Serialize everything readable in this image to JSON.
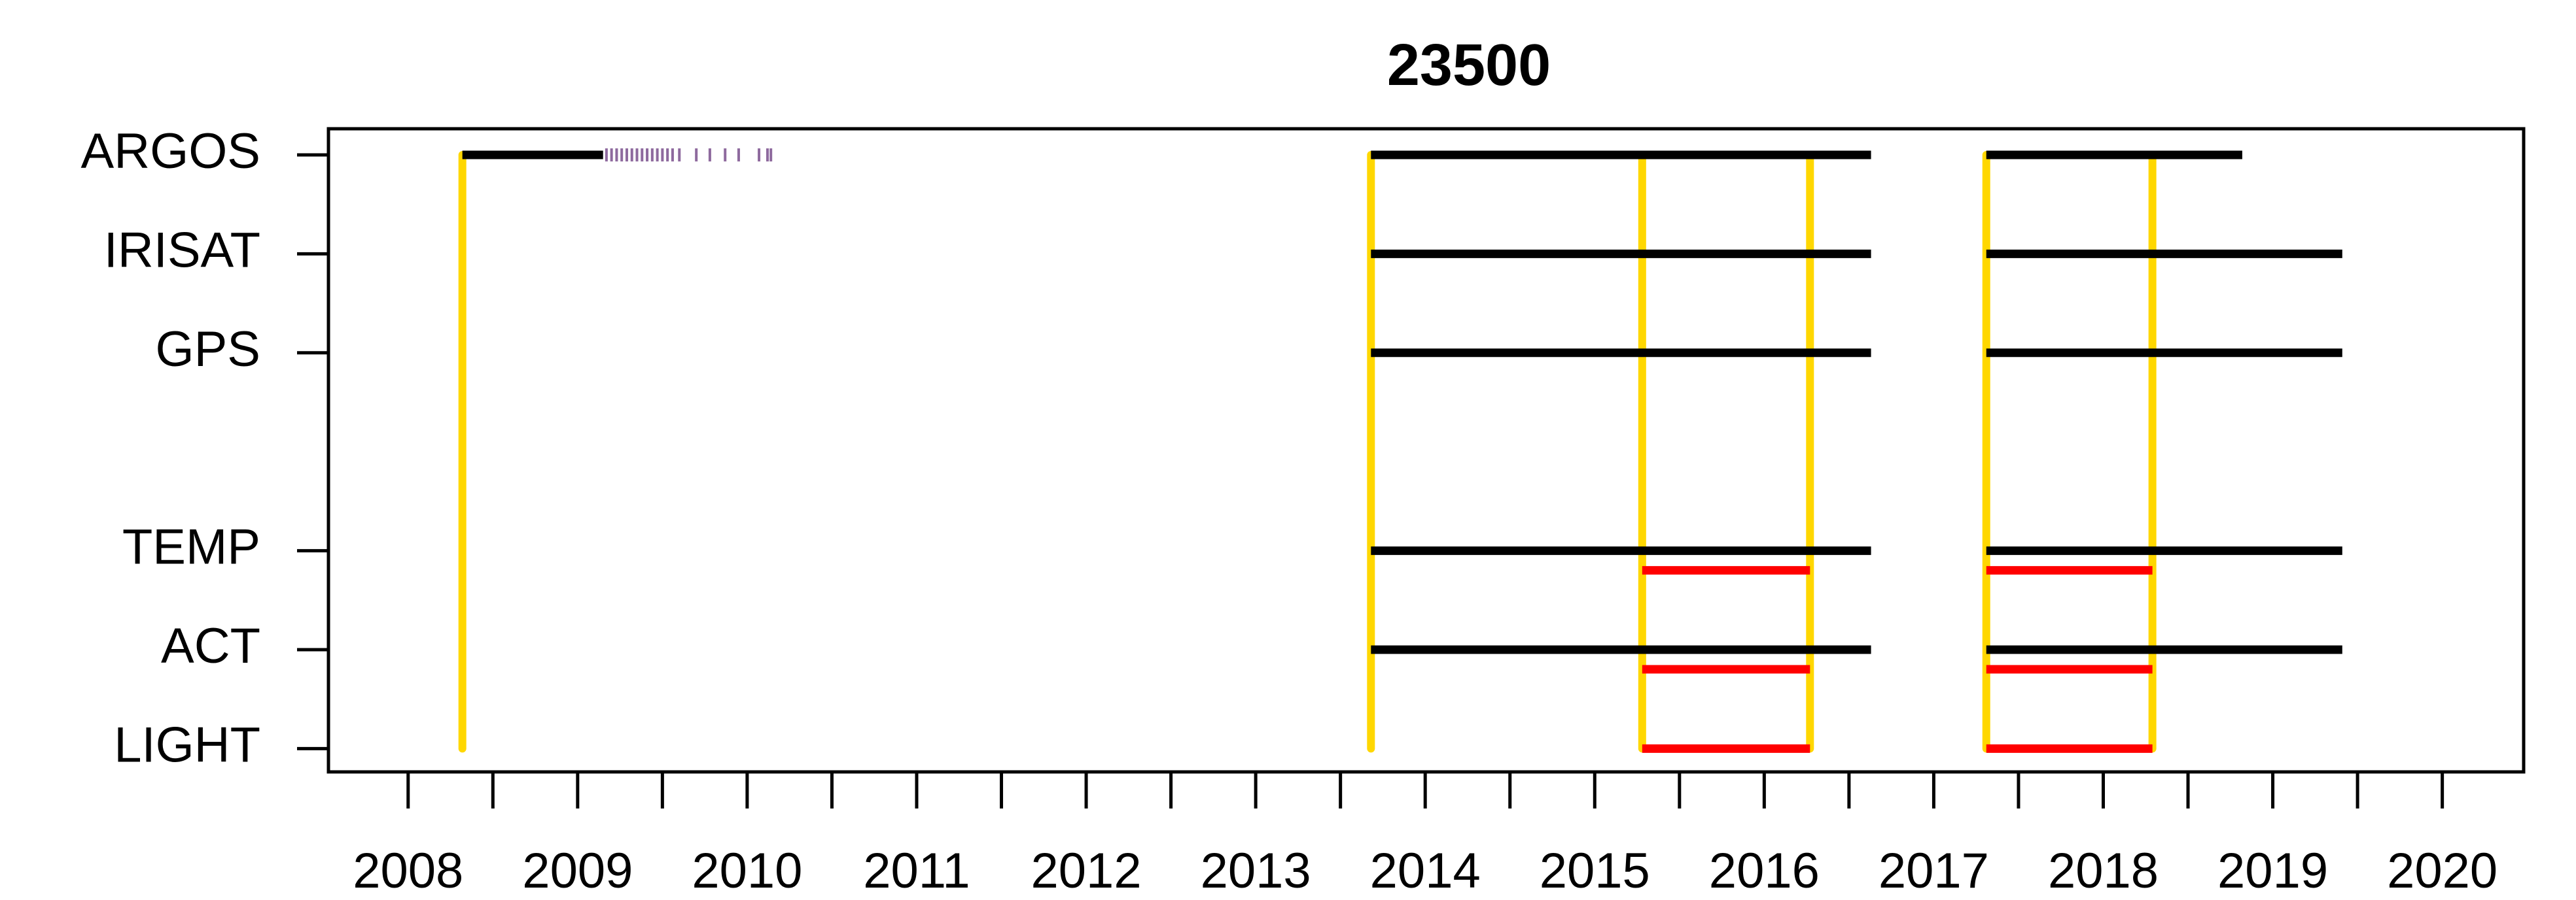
{
  "chart_data": {
    "type": "timeline",
    "title": "23500",
    "categories": [
      "ARGOS",
      "IRISAT",
      "GPS",
      null,
      "TEMP",
      "ACT",
      "LIGHT"
    ],
    "xlim": [
      2007.53,
      2020.48
    ],
    "xticks": [
      2008,
      2009,
      2010,
      2011,
      2012,
      2013,
      2014,
      2015,
      2016,
      2017,
      2018,
      2019,
      2020
    ],
    "minor_xticks": [
      2008.5,
      2009.5,
      2010.5,
      2011.5,
      2012.5,
      2013.5,
      2014.5,
      2015.5,
      2016.5,
      2017.5,
      2018.5,
      2019.5
    ],
    "series": [
      {
        "kind": "segments",
        "color": "#000000",
        "values": [
          [
            [
              2008.32,
              2009.15
            ],
            [
              2013.68,
              2016.63
            ],
            [
              2017.31,
              2018.82
            ]
          ],
          [
            [
              2013.68,
              2016.63
            ],
            [
              2017.31,
              2019.41
            ]
          ],
          [
            [
              2013.68,
              2016.63
            ],
            [
              2017.31,
              2019.41
            ]
          ],
          null,
          [
            [
              2013.68,
              2016.63
            ],
            [
              2017.31,
              2019.41
            ]
          ],
          [
            [
              2013.68,
              2016.63
            ],
            [
              2017.31,
              2019.41
            ]
          ],
          null
        ]
      },
      {
        "kind": "segments",
        "color": "#ff0000",
        "values": [
          null,
          null,
          null,
          null,
          [
            [
              2015.28,
              2016.27
            ],
            [
              2017.31,
              2018.29
            ]
          ],
          [
            [
              2015.28,
              2016.27
            ],
            [
              2017.31,
              2018.29
            ]
          ],
          [
            [
              2015.28,
              2016.27
            ],
            [
              2017.31,
              2018.29
            ]
          ]
        ]
      },
      {
        "kind": "ticks",
        "color": "#8e6a9e",
        "values": [
          [
            2009.17,
            2009.2,
            2009.23,
            2009.26,
            2009.29,
            2009.32,
            2009.35,
            2009.38,
            2009.41,
            2009.44,
            2009.47,
            2009.5,
            2009.53,
            2009.56,
            2009.6,
            2009.7,
            2009.78,
            2009.87,
            2009.95,
            2010.07,
            2010.12,
            2010.14
          ],
          null,
          null,
          null,
          null,
          null,
          null
        ]
      }
    ],
    "vlines": {
      "color": "#ffd700",
      "values": [
        2008.32,
        2013.68,
        2015.28,
        2016.27,
        2017.31,
        2018.29
      ]
    }
  }
}
